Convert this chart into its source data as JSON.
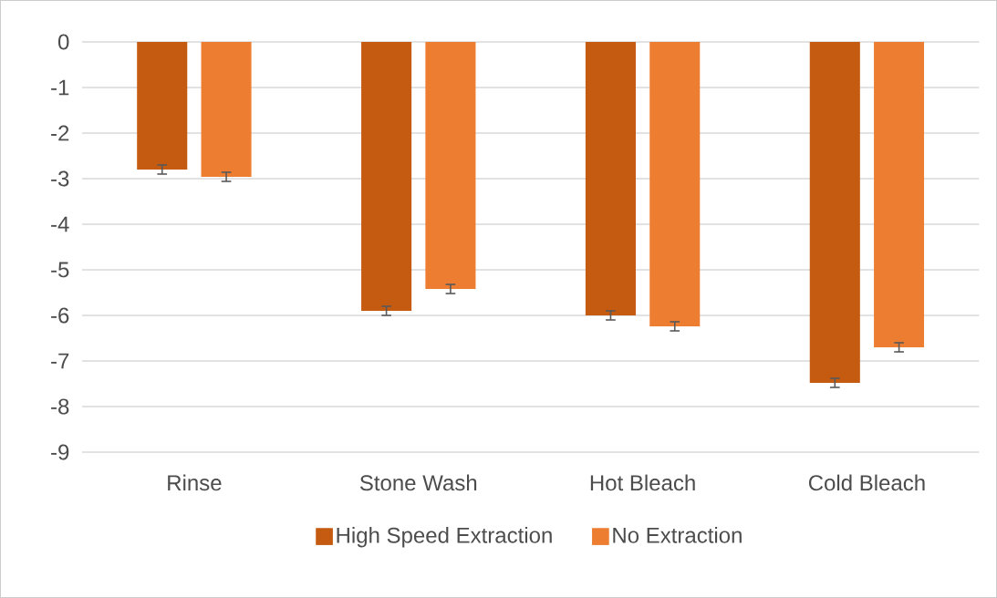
{
  "chart_data": {
    "type": "bar",
    "categories": [
      "Rinse",
      "Stone Wash",
      "Hot Bleach",
      "Cold Bleach"
    ],
    "series": [
      {
        "name": "High Speed Extraction",
        "color": "#c55a11",
        "values": [
          -2.8,
          -5.9,
          -6.0,
          -7.48
        ],
        "errors": [
          0.1,
          0.1,
          0.1,
          0.1
        ]
      },
      {
        "name": "No Extraction",
        "color": "#ed7d31",
        "values": [
          -2.96,
          -5.42,
          -6.24,
          -6.7
        ],
        "errors": [
          0.1,
          0.1,
          0.1,
          0.1
        ]
      }
    ],
    "ylim": [
      -9,
      0
    ],
    "yticks": [
      -9,
      -8,
      -7,
      -6,
      -5,
      -4,
      -3,
      -2,
      -1,
      0
    ],
    "grid": "y",
    "legend": "bottom"
  }
}
